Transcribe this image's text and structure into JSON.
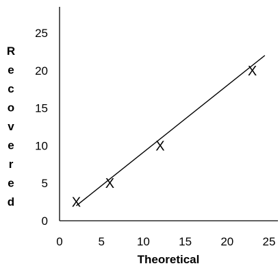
{
  "chart_data": {
    "type": "scatter",
    "title": "",
    "xlabel": "Theoretical",
    "ylabel": "Recovered",
    "xlim": [
      0,
      25
    ],
    "ylim": [
      0,
      25
    ],
    "xticks": [
      0,
      5,
      10,
      15,
      20,
      25
    ],
    "yticks": [
      0,
      5,
      10,
      15,
      20,
      25
    ],
    "grid": false,
    "legend": "none",
    "points": [
      {
        "x": 2,
        "y": 2.5
      },
      {
        "x": 6,
        "y": 5
      },
      {
        "x": 12,
        "y": 10
      },
      {
        "x": 23,
        "y": 20
      }
    ],
    "marker": "X",
    "trendline": {
      "x": [
        2,
        24.5
      ],
      "y": [
        2,
        22
      ]
    },
    "colors": {
      "axis": "#000000",
      "text": "#000000",
      "line": "#000000",
      "marker": "#000000"
    }
  }
}
